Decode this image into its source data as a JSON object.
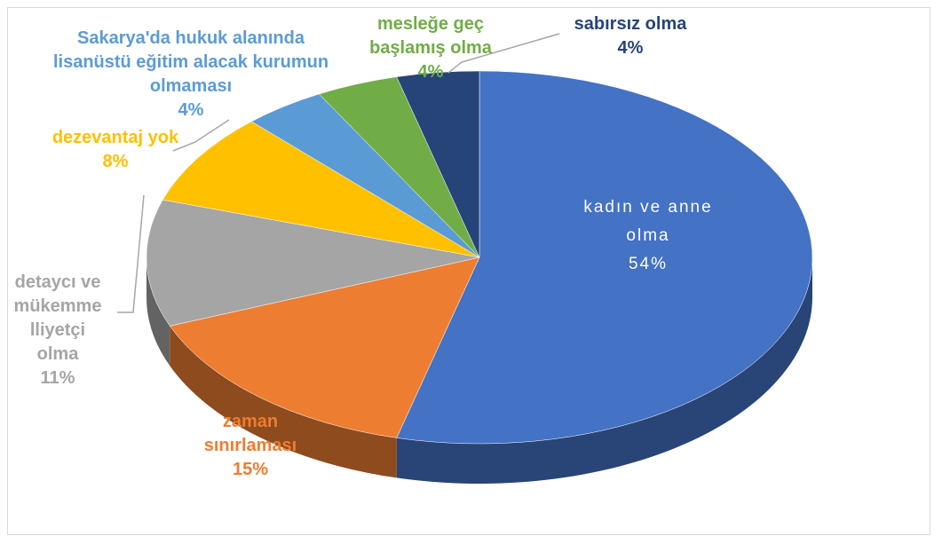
{
  "chart_data": {
    "type": "pie",
    "categories": [
      "kadın ve anne olma",
      "zaman sınırlaması",
      "detaycı ve mükemmelliyetçi olma",
      "dezevantaj yok",
      "Sakarya'da hukuk alanında lisanüstü eğitim alacak kurumun olmaması",
      "mesleğe geç başlamış olma",
      "sabırsız olma"
    ],
    "values": [
      54,
      15,
      11,
      8,
      4,
      4,
      4
    ],
    "value_labels": [
      "54%",
      "15%",
      "11%",
      "8%",
      "4%",
      "4%",
      "4%"
    ],
    "colors": [
      "#4472c4",
      "#ed7d31",
      "#a5a5a5",
      "#ffc000",
      "#5b9bd5",
      "#70ad47",
      "#264478"
    ],
    "label_colors": [
      "#ffffff",
      "#ed7d31",
      "#a5a5a5",
      "#ffc000",
      "#5b9bd5",
      "#70ad47",
      "#264478"
    ]
  }
}
